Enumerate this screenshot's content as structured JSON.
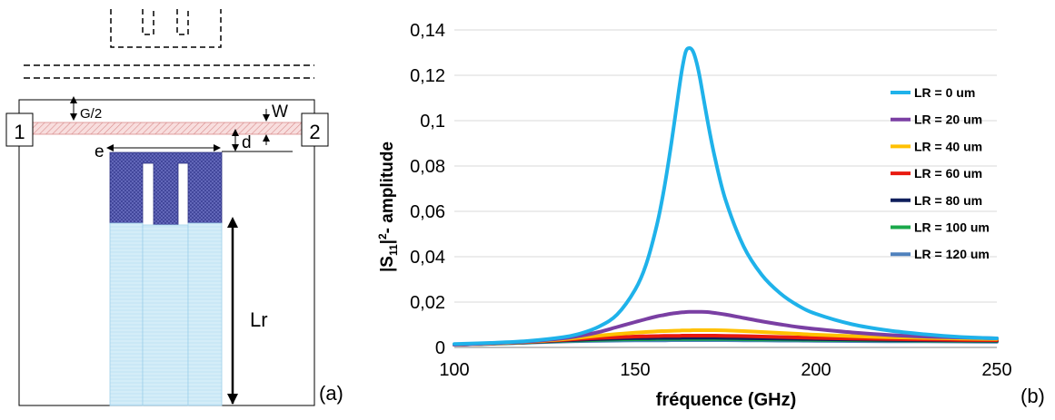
{
  "schematic": {
    "port_left": "1",
    "port_right": "2",
    "label_g2": "G/2",
    "label_w": "W",
    "label_d": "d",
    "label_e": "e",
    "label_lr": "Lr",
    "panel_label": "(a)"
  },
  "plot": {
    "panel_label": "(b)"
  },
  "chart_data": {
    "type": "line",
    "title": "",
    "xlabel": "fréquence (GHz)",
    "ylabel_parts": {
      "pre": "|S",
      "sub": "11",
      "mid": "|",
      "sup": "2",
      "post": "- amplitude"
    },
    "xlim": [
      100,
      250
    ],
    "ylim": [
      0,
      0.14
    ],
    "x_ticks": [
      100,
      150,
      200,
      250
    ],
    "x_tick_labels": [
      "100",
      "150",
      "200",
      "250"
    ],
    "y_ticks": [
      0,
      0.02,
      0.04,
      0.06,
      0.08,
      0.1,
      0.12,
      0.14
    ],
    "y_tick_labels": [
      "0",
      "0,02",
      "0,04",
      "0,06",
      "0,08",
      "0,1",
      "0,12",
      "0,14"
    ],
    "grid": "horizontal",
    "legend_position": "right",
    "x": [
      100,
      110,
      120,
      130,
      135,
      140,
      145,
      150,
      153,
      156,
      158,
      160,
      162,
      163,
      164,
      165,
      166,
      167,
      168,
      170,
      172,
      175,
      180,
      185,
      190,
      195,
      200,
      210,
      220,
      230,
      240,
      250
    ],
    "series": [
      {
        "name": "LR = 0 um",
        "color": "#1fb2ea",
        "values": [
          0.0015,
          0.002,
          0.0028,
          0.0045,
          0.0062,
          0.0092,
          0.0145,
          0.0255,
          0.0365,
          0.054,
          0.07,
          0.09,
          0.1125,
          0.123,
          0.1305,
          0.132,
          0.1305,
          0.1255,
          0.118,
          0.1,
          0.084,
          0.065,
          0.0445,
          0.032,
          0.024,
          0.0185,
          0.0148,
          0.0102,
          0.0075,
          0.0058,
          0.0046,
          0.004
        ]
      },
      {
        "name": "LR = 20 um",
        "color": "#7a3fa3",
        "values": [
          0.0012,
          0.0018,
          0.0026,
          0.004,
          0.0052,
          0.0068,
          0.009,
          0.0112,
          0.0125,
          0.0137,
          0.0143,
          0.0149,
          0.0153,
          0.0155,
          0.0156,
          0.0157,
          0.0157,
          0.0157,
          0.0157,
          0.0156,
          0.0152,
          0.0145,
          0.013,
          0.0115,
          0.0102,
          0.009,
          0.0081,
          0.0066,
          0.0055,
          0.0048,
          0.0044,
          0.004
        ]
      },
      {
        "name": "LR = 40 um",
        "color": "#ffc000",
        "values": [
          0.0012,
          0.0017,
          0.0025,
          0.0036,
          0.0044,
          0.0052,
          0.0059,
          0.0065,
          0.0068,
          0.0071,
          0.0072,
          0.0073,
          0.0074,
          0.0075,
          0.0075,
          0.0075,
          0.0076,
          0.0076,
          0.0076,
          0.0076,
          0.0076,
          0.0075,
          0.0072,
          0.0068,
          0.0064,
          0.006,
          0.0056,
          0.005,
          0.0045,
          0.0042,
          0.0039,
          0.0037
        ]
      },
      {
        "name": "LR = 60 um",
        "color": "#e8190f",
        "values": [
          0.0012,
          0.0017,
          0.0024,
          0.0033,
          0.0038,
          0.0042,
          0.0045,
          0.0048,
          0.0049,
          0.005,
          0.0051,
          0.0051,
          0.0051,
          0.0052,
          0.0052,
          0.0052,
          0.0052,
          0.0052,
          0.0052,
          0.0052,
          0.0052,
          0.0051,
          0.005,
          0.0048,
          0.0046,
          0.0044,
          0.0042,
          0.0039,
          0.0037,
          0.0035,
          0.0033,
          0.0032
        ]
      },
      {
        "name": "LR = 80 um",
        "color": "#0f1f5c",
        "values": [
          0.0012,
          0.0017,
          0.0023,
          0.0031,
          0.0034,
          0.0037,
          0.0039,
          0.0041,
          0.0041,
          0.0042,
          0.0042,
          0.0042,
          0.0042,
          0.0043,
          0.0043,
          0.0043,
          0.0043,
          0.0043,
          0.0043,
          0.0043,
          0.0043,
          0.0042,
          0.0041,
          0.004,
          0.0039,
          0.0038,
          0.0037,
          0.0035,
          0.0033,
          0.0032,
          0.0031,
          0.003
        ]
      },
      {
        "name": "LR = 100 um",
        "color": "#1aa84b",
        "values": [
          0.0012,
          0.0016,
          0.0022,
          0.0029,
          0.0031,
          0.0033,
          0.0035,
          0.0036,
          0.0036,
          0.0037,
          0.0037,
          0.0037,
          0.0037,
          0.0037,
          0.0037,
          0.0037,
          0.0037,
          0.0037,
          0.0037,
          0.0037,
          0.0037,
          0.0037,
          0.0036,
          0.0035,
          0.0035,
          0.0034,
          0.0033,
          0.0032,
          0.0031,
          0.003,
          0.0029,
          0.0028
        ]
      },
      {
        "name": "LR = 120 um",
        "color": "#4f81bd",
        "values": [
          0.0012,
          0.0016,
          0.0021,
          0.0026,
          0.0028,
          0.0029,
          0.003,
          0.0031,
          0.0031,
          0.0031,
          0.0031,
          0.0032,
          0.0032,
          0.0032,
          0.0032,
          0.0032,
          0.0032,
          0.0032,
          0.0032,
          0.0032,
          0.0032,
          0.0032,
          0.0031,
          0.0031,
          0.003,
          0.003,
          0.0029,
          0.0028,
          0.0027,
          0.0027,
          0.0026,
          0.0025
        ]
      }
    ]
  }
}
